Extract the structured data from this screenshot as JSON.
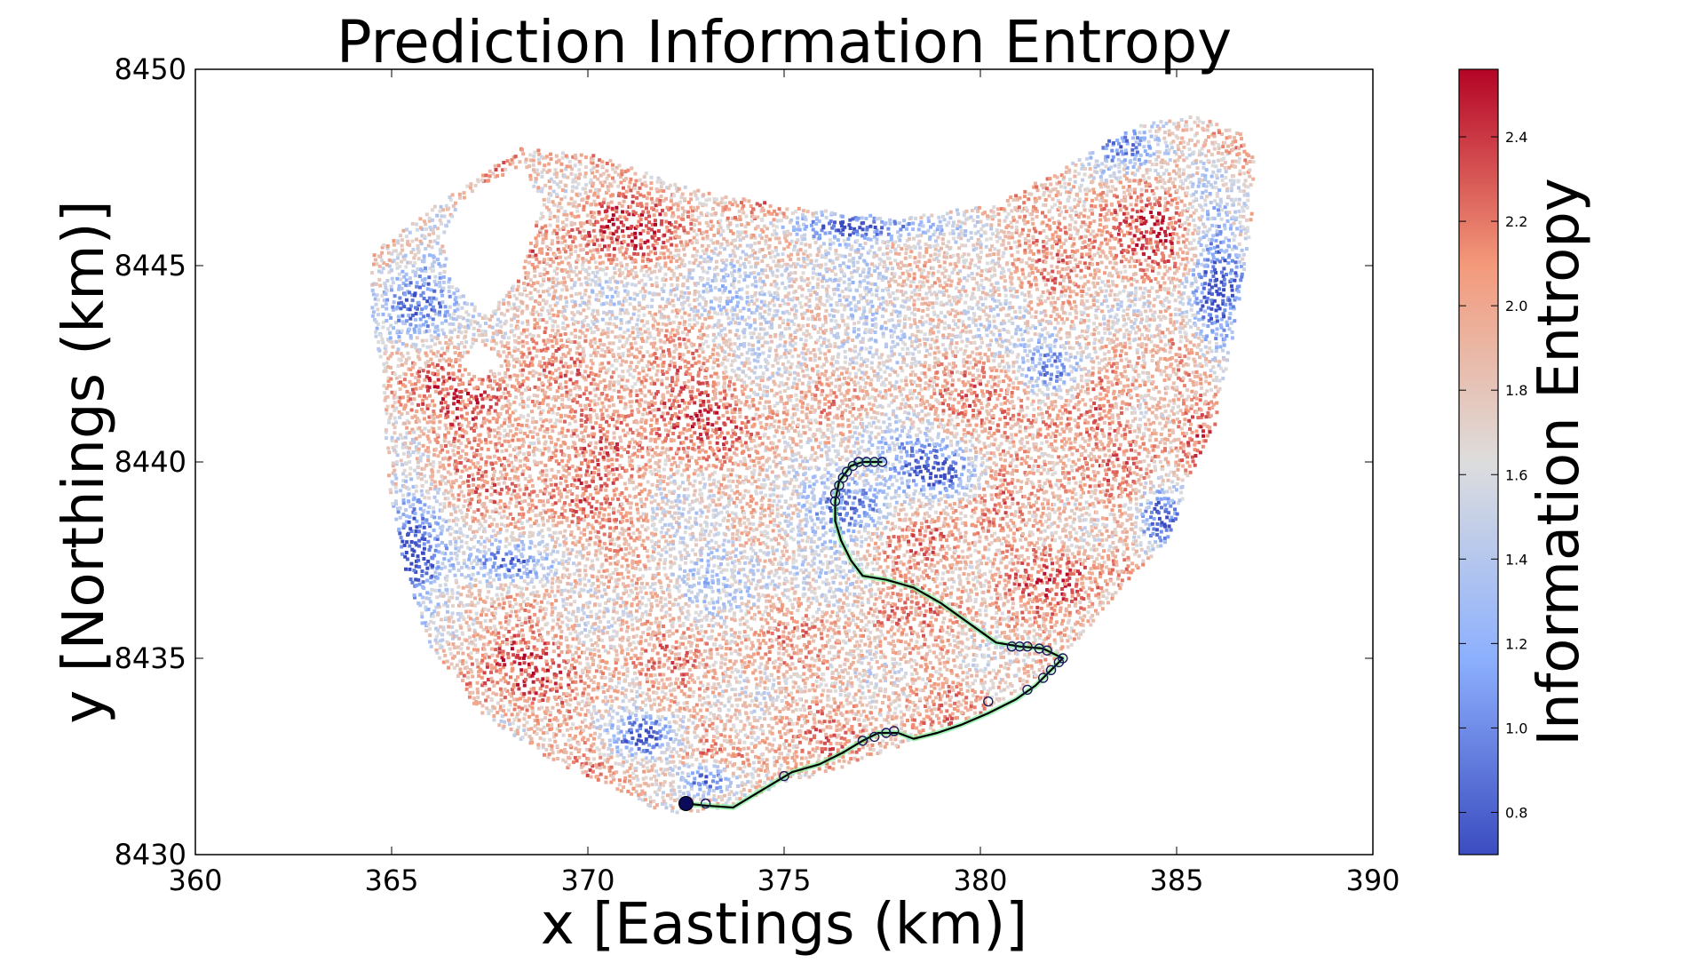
{
  "chart_data": {
    "type": "scatter",
    "title": "Prediction Information Entropy",
    "xlabel": "x [Eastings (km)]",
    "ylabel": "y [Northings (km)]",
    "xlim": [
      360,
      390
    ],
    "ylim": [
      8430,
      8450
    ],
    "xticks": [
      360,
      365,
      370,
      375,
      380,
      385,
      390
    ],
    "yticks": [
      8430,
      8435,
      8440,
      8445,
      8450
    ],
    "grid": false,
    "colorbar": {
      "label": "Information Entropy",
      "range": [
        0.7,
        2.56
      ],
      "ticks": [
        0.8,
        1.0,
        1.2,
        1.4,
        1.6,
        1.8,
        2.0,
        2.2,
        2.4
      ],
      "colormap": "coolwarm",
      "colors": [
        "#3b4cc0",
        "#8db0fe",
        "#dddddd",
        "#f49a7b",
        "#b40426"
      ]
    },
    "series": [
      {
        "kind": "scatter-field",
        "boundary": [
          [
            364.5,
            8445.3
          ],
          [
            366.5,
            8446.8
          ],
          [
            368.3,
            8448.0
          ],
          [
            370.2,
            8447.8
          ],
          [
            372.5,
            8447.0
          ],
          [
            375.0,
            8446.5
          ],
          [
            378.0,
            8446.2
          ],
          [
            380.5,
            8446.6
          ],
          [
            382.3,
            8447.6
          ],
          [
            384.0,
            8448.6
          ],
          [
            385.5,
            8448.8
          ],
          [
            386.6,
            8448.4
          ],
          [
            387.0,
            8447.7
          ],
          [
            386.9,
            8446.0
          ],
          [
            386.5,
            8443.5
          ],
          [
            386.0,
            8441.0
          ],
          [
            385.3,
            8439.5
          ],
          [
            384.8,
            8438.0
          ],
          [
            383.8,
            8437.0
          ],
          [
            382.8,
            8435.8
          ],
          [
            381.5,
            8434.5
          ],
          [
            380.0,
            8433.6
          ],
          [
            378.5,
            8433.0
          ],
          [
            376.8,
            8432.3
          ],
          [
            375.0,
            8431.8
          ],
          [
            373.5,
            8431.2
          ],
          [
            372.0,
            8431.0
          ],
          [
            370.5,
            8431.8
          ],
          [
            369.0,
            8432.4
          ],
          [
            367.3,
            8433.6
          ],
          [
            366.0,
            8435.2
          ],
          [
            365.3,
            8437.4
          ],
          [
            364.9,
            8439.6
          ],
          [
            364.8,
            8442.0
          ],
          [
            364.5,
            8443.7
          ]
        ],
        "holes": [
          [
            [
              366.8,
              8446.7
            ],
            [
              368.4,
              8447.6
            ],
            [
              368.8,
              8446.5
            ],
            [
              368.3,
              8444.7
            ],
            [
              367.4,
              8443.7
            ],
            [
              366.5,
              8444.6
            ],
            [
              366.3,
              8445.7
            ]
          ],
          [
            [
              367.2,
              8443.1
            ],
            [
              367.8,
              8442.6
            ],
            [
              367.3,
              8442.1
            ],
            [
              366.7,
              8442.5
            ]
          ]
        ],
        "blue_regions": [
          [
            383.6,
            8448.0,
            1.1,
            0.7
          ],
          [
            376.8,
            8446.0,
            2.0,
            0.3
          ],
          [
            365.6,
            8444.2,
            1.0,
            1.1
          ],
          [
            365.5,
            8437.5,
            0.8,
            1.8
          ],
          [
            368.0,
            8437.4,
            1.1,
            0.6
          ],
          [
            376.8,
            8438.8,
            1.1,
            0.7
          ],
          [
            379.0,
            8439.7,
            1.0,
            0.6
          ],
          [
            386.0,
            8444.3,
            0.7,
            2.2
          ],
          [
            381.9,
            8442.3,
            0.9,
            0.8
          ],
          [
            371.5,
            8433.0,
            0.9,
            0.5
          ],
          [
            384.6,
            8438.5,
            0.6,
            0.9
          ],
          [
            373.0,
            8431.9,
            0.8,
            0.4
          ]
        ],
        "red_regions": [
          [
            367.2,
            8441.4,
            1.5,
            0.9
          ],
          [
            372.0,
            8441.5,
            1.7,
            1.1
          ],
          [
            381.9,
            8441.3,
            1.7,
            1.1
          ],
          [
            383.8,
            8446.1,
            1.7,
            1.0
          ],
          [
            369.6,
            8438.9,
            1.5,
            0.8
          ],
          [
            378.8,
            8437.9,
            1.1,
            0.8
          ],
          [
            370.8,
            8446.0,
            1.6,
            0.8
          ],
          [
            385.6,
            8441.0,
            0.8,
            1.6
          ],
          [
            368.0,
            8435.0,
            1.2,
            0.9
          ],
          [
            382.2,
            8437.2,
            1.0,
            0.8
          ]
        ],
        "light_blue_regions": [
          [
            375.6,
            8444.0,
            5.1,
            1.3
          ],
          [
            373.6,
            8437.5,
            2.6,
            1.3
          ],
          [
            377.5,
            8440.5,
            1.6,
            0.9
          ]
        ]
      },
      {
        "kind": "trajectory",
        "line_color": "#000000",
        "start_point": [
          372.5,
          8431.3
        ],
        "path": [
          [
            372.5,
            8431.3
          ],
          [
            373.0,
            8431.25
          ],
          [
            373.7,
            8431.2
          ],
          [
            374.2,
            8431.5
          ],
          [
            374.7,
            8431.8
          ],
          [
            375.2,
            8432.1
          ],
          [
            375.9,
            8432.3
          ],
          [
            376.5,
            8432.6
          ],
          [
            377.0,
            8432.9
          ],
          [
            377.4,
            8433.1
          ],
          [
            377.9,
            8433.1
          ],
          [
            378.3,
            8432.95
          ],
          [
            378.9,
            8433.1
          ],
          [
            379.5,
            8433.3
          ],
          [
            380.2,
            8433.6
          ],
          [
            380.9,
            8433.95
          ],
          [
            381.4,
            8434.3
          ],
          [
            381.8,
            8434.7
          ],
          [
            382.1,
            8435.0
          ],
          [
            381.6,
            8435.25
          ],
          [
            381.0,
            8435.3
          ],
          [
            380.4,
            8435.4
          ],
          [
            379.7,
            8435.9
          ],
          [
            379.0,
            8436.4
          ],
          [
            378.3,
            8436.8
          ],
          [
            377.6,
            8437.0
          ],
          [
            377.0,
            8437.1
          ],
          [
            376.7,
            8437.5
          ],
          [
            376.45,
            8438.0
          ],
          [
            376.3,
            8438.5
          ],
          [
            376.3,
            8439.0
          ],
          [
            376.4,
            8439.5
          ],
          [
            376.7,
            8439.9
          ],
          [
            377.0,
            8440.0
          ],
          [
            377.5,
            8440.0
          ]
        ],
        "circle_markers": [
          [
            373.0,
            8431.3
          ],
          [
            375.0,
            8432.0
          ],
          [
            377.0,
            8432.9
          ],
          [
            377.3,
            8433.0
          ],
          [
            377.6,
            8433.1
          ],
          [
            377.8,
            8433.15
          ],
          [
            380.2,
            8433.9
          ],
          [
            381.2,
            8434.2
          ],
          [
            381.6,
            8434.5
          ],
          [
            381.8,
            8434.7
          ],
          [
            382.0,
            8434.9
          ],
          [
            382.1,
            8435.0
          ],
          [
            381.7,
            8435.2
          ],
          [
            381.5,
            8435.25
          ],
          [
            381.2,
            8435.3
          ],
          [
            381.0,
            8435.3
          ],
          [
            380.8,
            8435.3
          ],
          [
            376.3,
            8439.0
          ],
          [
            376.3,
            8439.2
          ],
          [
            376.4,
            8439.4
          ],
          [
            376.5,
            8439.6
          ],
          [
            376.6,
            8439.75
          ],
          [
            376.75,
            8439.9
          ],
          [
            376.9,
            8440.0
          ],
          [
            377.1,
            8440.0
          ],
          [
            377.3,
            8440.0
          ],
          [
            377.5,
            8440.0
          ]
        ]
      }
    ]
  }
}
